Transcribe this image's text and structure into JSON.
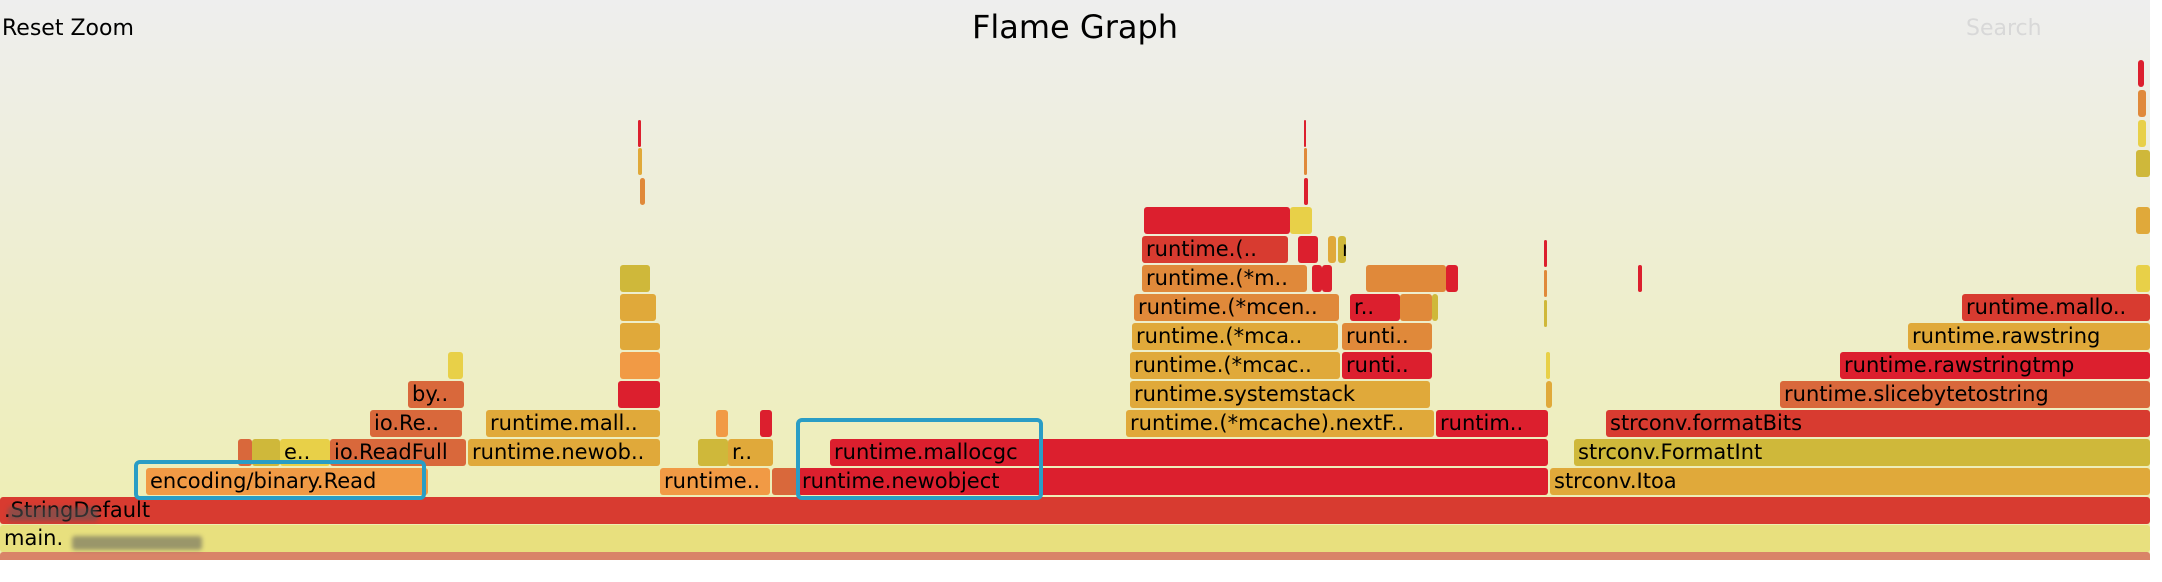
{
  "toolbar": {
    "reset_zoom_label": "Reset Zoom",
    "title": "Flame Graph",
    "search_label": "Search"
  },
  "colors": {
    "red": "#dc1f2e",
    "dark_red": "#d83b30",
    "orange": "#f19a45",
    "dark_orange": "#e0893a",
    "burnt": "#d9683b",
    "gold": "#e0a93a",
    "olive": "#cfb83a",
    "yellow": "#e8d048",
    "light": "#e8e07e",
    "salmon": "#d98468",
    "highlight": "#2a9dc5"
  },
  "frames": [
    {
      "label": "",
      "color": "salmon"
    },
    {
      "label": "main.",
      "color": "light"
    },
    {
      "label": ".StringDefault",
      "color": "dark_red"
    },
    {
      "label": "encoding/binary.Read",
      "color": "orange"
    },
    {
      "label": "runtime..",
      "color": "orange"
    },
    {
      "label": "",
      "color": "burnt"
    },
    {
      "label": "runtime.newobject",
      "color": "red"
    },
    {
      "label": "strconv.Itoa",
      "color": "gold"
    },
    {
      "label": "",
      "color": "burnt"
    },
    {
      "label": "",
      "color": "olive"
    },
    {
      "label": "e..",
      "color": "yellow"
    },
    {
      "label": "io.ReadFull",
      "color": "burnt"
    },
    {
      "label": "runtime.newob..",
      "color": "gold"
    },
    {
      "label": "",
      "color": "olive"
    },
    {
      "label": "r..",
      "color": "gold"
    },
    {
      "label": "runtime.mallocgc",
      "color": "red"
    },
    {
      "label": "strconv.FormatInt",
      "color": "olive"
    },
    {
      "label": "io.Re..",
      "color": "burnt"
    },
    {
      "label": "runtime.mall..",
      "color": "gold"
    },
    {
      "label": "",
      "color": "orange"
    },
    {
      "label": "",
      "color": "red"
    },
    {
      "label": "runtime.(*mcache).nextF..",
      "color": "gold"
    },
    {
      "label": "runtim..",
      "color": "red"
    },
    {
      "label": "strconv.formatBits",
      "color": "dark_red"
    },
    {
      "label": "by..",
      "color": "burnt"
    },
    {
      "label": "",
      "color": "red"
    },
    {
      "label": "runtime.systemstack",
      "color": "gold"
    },
    {
      "label": "",
      "color": "gold"
    },
    {
      "label": "runtime.slicebytetostring",
      "color": "burnt"
    },
    {
      "label": "",
      "color": "yellow"
    },
    {
      "label": "",
      "color": "orange"
    },
    {
      "label": "runtime.(*mcac..",
      "color": "gold"
    },
    {
      "label": "runti..",
      "color": "red"
    },
    {
      "label": "",
      "color": "yellow"
    },
    {
      "label": "runtime.rawstringtmp",
      "color": "red"
    },
    {
      "label": "",
      "color": "gold"
    },
    {
      "label": "runtime.(*mca..",
      "color": "gold"
    },
    {
      "label": "runti..",
      "color": "dark_orange"
    },
    {
      "label": "runtime.rawstring",
      "color": "gold"
    },
    {
      "label": "",
      "color": "gold"
    },
    {
      "label": "runtime.(*mcen..",
      "color": "dark_orange"
    },
    {
      "label": "r..",
      "color": "red"
    },
    {
      "label": "",
      "color": "dark_orange"
    },
    {
      "label": "",
      "color": "olive"
    },
    {
      "label": "runtime.mallo..",
      "color": "dark_red"
    },
    {
      "label": "",
      "color": "olive"
    },
    {
      "label": "runtime.(*m..",
      "color": "dark_orange"
    },
    {
      "label": "",
      "color": "red"
    },
    {
      "label": "",
      "color": "red"
    },
    {
      "label": "",
      "color": "dark_orange"
    },
    {
      "label": "",
      "color": "red"
    },
    {
      "label": "",
      "color": "red"
    },
    {
      "label": "",
      "color": "yellow"
    },
    {
      "label": "runtime.(..",
      "color": "dark_red"
    },
    {
      "label": "",
      "color": "red"
    },
    {
      "label": "",
      "color": "gold"
    },
    {
      "label": "runtime...",
      "color": "olive"
    },
    {
      "label": "",
      "color": "red"
    },
    {
      "label": "",
      "color": "yellow"
    },
    {
      "label": "",
      "color": "gold"
    },
    {
      "label": "",
      "color": "olive"
    }
  ]
}
